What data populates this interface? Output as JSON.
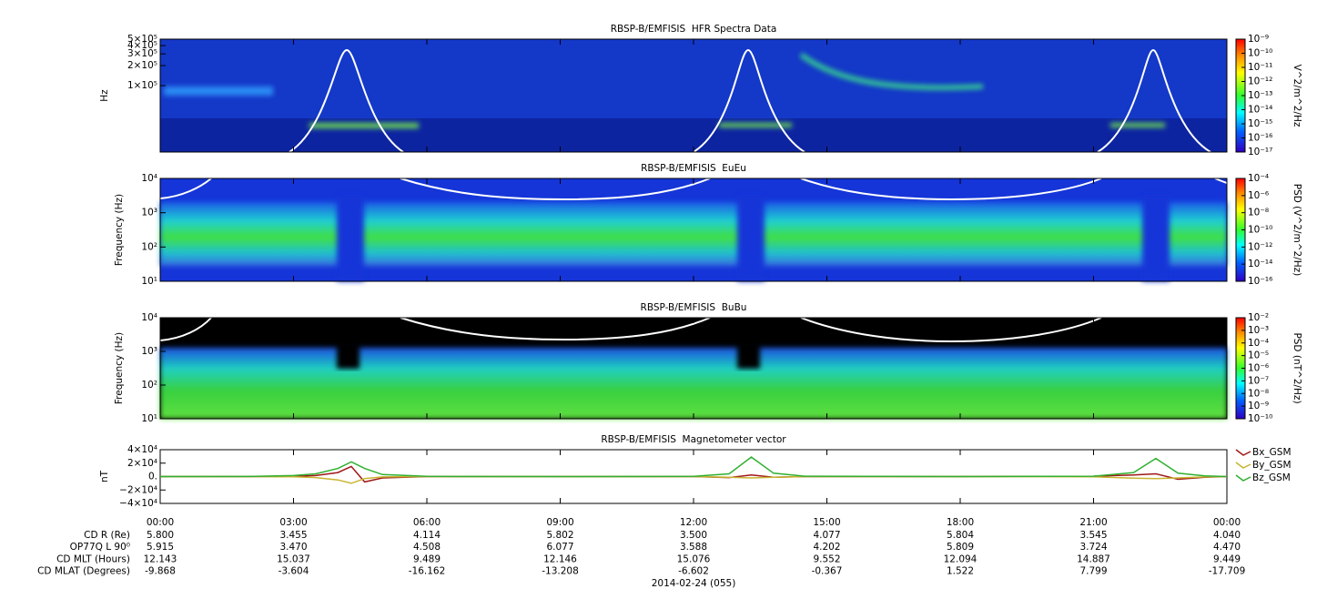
{
  "chart_data": [
    {
      "type": "heatmap",
      "title": "RBSP-B/EMFISIS  HFR Spectra Data",
      "y_label": "Hz",
      "log_y": true,
      "ylim": [
        10000,
        500000
      ],
      "yticks": [
        {
          "value": 100000,
          "label": "1×10⁵"
        },
        {
          "value": 200000,
          "label": "2×10⁵"
        },
        {
          "value": 300000,
          "label": "3×10⁵"
        },
        {
          "value": 400000,
          "label": "4×10⁵"
        },
        {
          "value": 500000,
          "label": "5×10⁵"
        }
      ],
      "colorbar": {
        "label": "V^2/m^2/Hz",
        "lim": [
          1e-17,
          1e-09
        ],
        "ticks": [
          {
            "value": 1e-09,
            "label": "10⁻⁹"
          },
          {
            "value": 1e-10,
            "label": "10⁻¹⁰"
          },
          {
            "value": 1e-11,
            "label": "10⁻¹¹"
          },
          {
            "value": 1e-12,
            "label": "10⁻¹²"
          },
          {
            "value": 1e-13,
            "label": "10⁻¹³"
          },
          {
            "value": 1e-14,
            "label": "10⁻¹⁴"
          },
          {
            "value": 1e-15,
            "label": "10⁻¹⁵"
          },
          {
            "value": 1e-16,
            "label": "10⁻¹⁶"
          },
          {
            "value": 1e-17,
            "label": "10⁻¹⁷"
          }
        ]
      }
    },
    {
      "type": "heatmap",
      "title": "RBSP-B/EMFISIS  EuEu",
      "y_label": "Frequency (Hz)",
      "log_y": true,
      "ylim": [
        10,
        10000
      ],
      "yticks": [
        {
          "value": 10,
          "label": "10¹"
        },
        {
          "value": 100,
          "label": "10²"
        },
        {
          "value": 1000,
          "label": "10³"
        },
        {
          "value": 10000,
          "label": "10⁴"
        }
      ],
      "colorbar": {
        "label": "PSD (V^2/m^2/Hz)",
        "lim": [
          1e-16,
          0.0001
        ],
        "ticks": [
          {
            "value": 0.0001,
            "label": "10⁻⁴"
          },
          {
            "value": 1e-06,
            "label": "10⁻⁶"
          },
          {
            "value": 1e-08,
            "label": "10⁻⁸"
          },
          {
            "value": 1e-10,
            "label": "10⁻¹⁰"
          },
          {
            "value": 1e-12,
            "label": "10⁻¹²"
          },
          {
            "value": 1e-14,
            "label": "10⁻¹⁴"
          },
          {
            "value": 1e-16,
            "label": "10⁻¹⁶"
          }
        ]
      }
    },
    {
      "type": "heatmap",
      "title": "RBSP-B/EMFISIS  BuBu",
      "y_label": "Frequency (Hz)",
      "log_y": true,
      "ylim": [
        10,
        10000
      ],
      "yticks": [
        {
          "value": 10,
          "label": "10¹"
        },
        {
          "value": 100,
          "label": "10²"
        },
        {
          "value": 1000,
          "label": "10³"
        },
        {
          "value": 10000,
          "label": "10⁴"
        }
      ],
      "colorbar": {
        "label": "PSD (nT^2/Hz)",
        "lim": [
          1e-10,
          0.01
        ],
        "ticks": [
          {
            "value": 0.01,
            "label": "10⁻²"
          },
          {
            "value": 0.001,
            "label": "10⁻³"
          },
          {
            "value": 0.0001,
            "label": "10⁻⁴"
          },
          {
            "value": 1e-05,
            "label": "10⁻⁵"
          },
          {
            "value": 1e-06,
            "label": "10⁻⁶"
          },
          {
            "value": 1e-07,
            "label": "10⁻⁷"
          },
          {
            "value": 1e-08,
            "label": "10⁻⁸"
          },
          {
            "value": 1e-09,
            "label": "10⁻⁹"
          },
          {
            "value": 1e-10,
            "label": "10⁻¹⁰"
          }
        ]
      }
    },
    {
      "type": "line",
      "title": "RBSP-B/EMFISIS  Magnetometer vector",
      "y_label": "nT",
      "ylim": [
        -40000,
        40000
      ],
      "yticks": [
        {
          "value": 40000,
          "label": "4×10⁴"
        },
        {
          "value": 20000,
          "label": "2×10⁴"
        },
        {
          "value": 0,
          "label": "0."
        },
        {
          "value": -20000,
          "label": "−2×10⁴"
        },
        {
          "value": -40000,
          "label": "−4×10⁴"
        }
      ],
      "xlim": [
        0,
        24
      ],
      "xticks": [
        {
          "value": 0,
          "label": "00:00"
        },
        {
          "value": 3,
          "label": "03:00"
        },
        {
          "value": 6,
          "label": "06:00"
        },
        {
          "value": 9,
          "label": "09:00"
        },
        {
          "value": 12,
          "label": "12:00"
        },
        {
          "value": 15,
          "label": "15:00"
        },
        {
          "value": 18,
          "label": "18:00"
        },
        {
          "value": 21,
          "label": "21:00"
        },
        {
          "value": 24,
          "label": "00:00"
        }
      ],
      "x": [
        0,
        2,
        3,
        3.5,
        4,
        4.3,
        4.6,
        5,
        6,
        9,
        12,
        12.8,
        13.3,
        13.8,
        14.5,
        18,
        21,
        21.9,
        22.4,
        22.9,
        23.5,
        24
      ],
      "legend": "right",
      "series": [
        {
          "name": "Bx_GSM",
          "color": "#a01818",
          "values": [
            0,
            0,
            300,
            1500,
            6000,
            15000,
            -8000,
            -2000,
            0,
            0,
            0,
            -1500,
            2500,
            -1000,
            0,
            0,
            500,
            2500,
            4000,
            -4000,
            -1000,
            0
          ]
        },
        {
          "name": "By_GSM",
          "color": "#c8b430",
          "values": [
            0,
            0,
            -300,
            -1500,
            -5000,
            -10000,
            -3000,
            -500,
            0,
            0,
            0,
            -1000,
            -2000,
            -1000,
            0,
            0,
            -300,
            -2500,
            -3000,
            -2000,
            -500,
            0
          ]
        },
        {
          "name": "Bz_GSM",
          "color": "#30b030",
          "values": [
            0,
            200,
            1500,
            4000,
            12000,
            22000,
            12000,
            3000,
            300,
            0,
            300,
            4000,
            29000,
            5000,
            500,
            0,
            500,
            6000,
            27000,
            5000,
            1000,
            0
          ]
        }
      ]
    }
  ],
  "ephemeris": {
    "rows": [
      {
        "label": "CD R (Re)",
        "values": [
          "5.800",
          "3.455",
          "4.114",
          "5.802",
          "3.500",
          "4.077",
          "5.804",
          "3.545",
          "4.040"
        ]
      },
      {
        "label": "OP77Q L 90⁰",
        "values": [
          "5.915",
          "3.470",
          "4.508",
          "6.077",
          "3.588",
          "4.202",
          "5.809",
          "3.724",
          "4.470"
        ]
      },
      {
        "label": "CD MLT (Hours)",
        "values": [
          "12.143",
          "15.037",
          "9.489",
          "12.146",
          "15.076",
          "9.552",
          "12.094",
          "14.887",
          "9.449"
        ]
      },
      {
        "label": "CD MLAT (Degrees)",
        "values": [
          "-9.868",
          "-3.604",
          "-16.162",
          "-13.208",
          "-6.602",
          "-0.367",
          "1.522",
          "7.799",
          "-17.709"
        ]
      }
    ]
  },
  "date": "2014-02-24 (055)"
}
